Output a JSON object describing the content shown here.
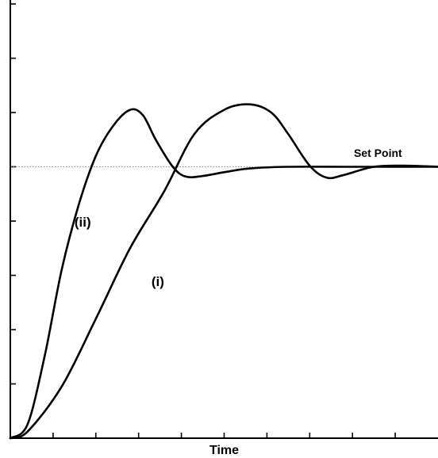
{
  "chart_data": {
    "type": "line",
    "title": "",
    "xlabel": "Time",
    "ylabel": "",
    "xlim": [
      0,
      10
    ],
    "ylim": [
      0,
      8
    ],
    "x_tick_count": 10,
    "y_tick_count": 8,
    "grid": false,
    "legend": "none",
    "reference_line": {
      "label": "Set Point",
      "y": 5
    },
    "series": [
      {
        "name": "(i)",
        "x": [
          0,
          0.4,
          1.2,
          2.0,
          2.8,
          3.6,
          4.3,
          5.0,
          5.6,
          6.1,
          6.5,
          7.0,
          7.4,
          7.8,
          8.5,
          9.2,
          10.0
        ],
        "y": [
          0,
          0.12,
          0.95,
          2.2,
          3.5,
          4.55,
          5.6,
          6.05,
          6.15,
          6.0,
          5.6,
          5.02,
          4.8,
          4.85,
          5.0,
          5.02,
          5.0
        ]
      },
      {
        "name": "(ii)",
        "x": [
          0,
          0.4,
          0.8,
          1.2,
          1.6,
          2.0,
          2.4,
          2.8,
          3.1,
          3.4,
          3.8,
          4.1,
          4.5,
          5.0,
          5.6,
          6.5,
          8.0,
          10.0
        ],
        "y": [
          0,
          0.25,
          1.5,
          3.1,
          4.3,
          5.2,
          5.75,
          6.05,
          5.95,
          5.5,
          5.0,
          4.82,
          4.83,
          4.9,
          4.97,
          5.0,
          5.0,
          5.0
        ]
      }
    ],
    "annotations": [
      {
        "text": "(ii)",
        "x": 1.5,
        "y": 3.9
      },
      {
        "text": "(i)",
        "x": 3.3,
        "y": 2.8
      }
    ]
  }
}
